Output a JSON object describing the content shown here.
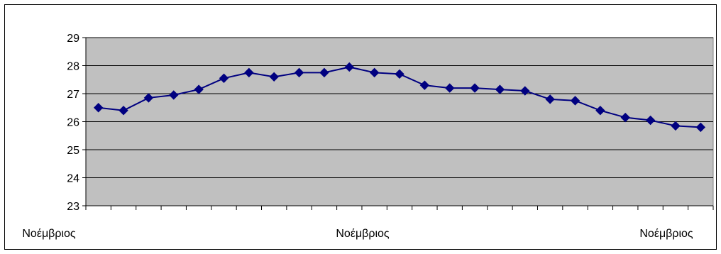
{
  "chart_data": {
    "type": "line",
    "title": "",
    "xlabel": "",
    "ylabel": "",
    "ylim": [
      23,
      29
    ],
    "yticks": [
      23,
      24,
      25,
      26,
      27,
      28,
      29
    ],
    "x_tick_labels": [
      "Νοέμβριος",
      "Νοέμβριος",
      "Νοέμβριος"
    ],
    "grid": "horizontal",
    "plot_background": "#c0c0c0",
    "series": [
      {
        "color": "#000080",
        "marker": "diamond",
        "values": [
          26.5,
          26.4,
          26.85,
          26.95,
          27.15,
          27.55,
          27.75,
          27.6,
          27.75,
          27.75,
          27.95,
          27.75,
          27.7,
          27.3,
          27.2,
          27.2,
          27.15,
          27.1,
          26.8,
          26.75,
          26.4,
          26.15,
          26.05,
          25.85,
          25.8
        ]
      }
    ]
  }
}
